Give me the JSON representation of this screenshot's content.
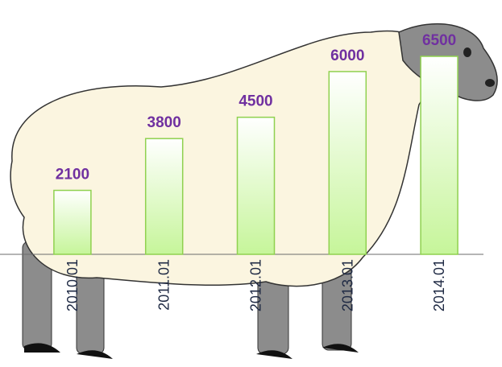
{
  "chart_data": {
    "type": "bar",
    "categories": [
      "2010.01",
      "2011.01",
      "2012.01",
      "2013.01",
      "2014.01"
    ],
    "values": [
      2100,
      3800,
      4500,
      6000,
      6500
    ],
    "color": "#c6f59a",
    "label_color": "#7030a0"
  }
}
